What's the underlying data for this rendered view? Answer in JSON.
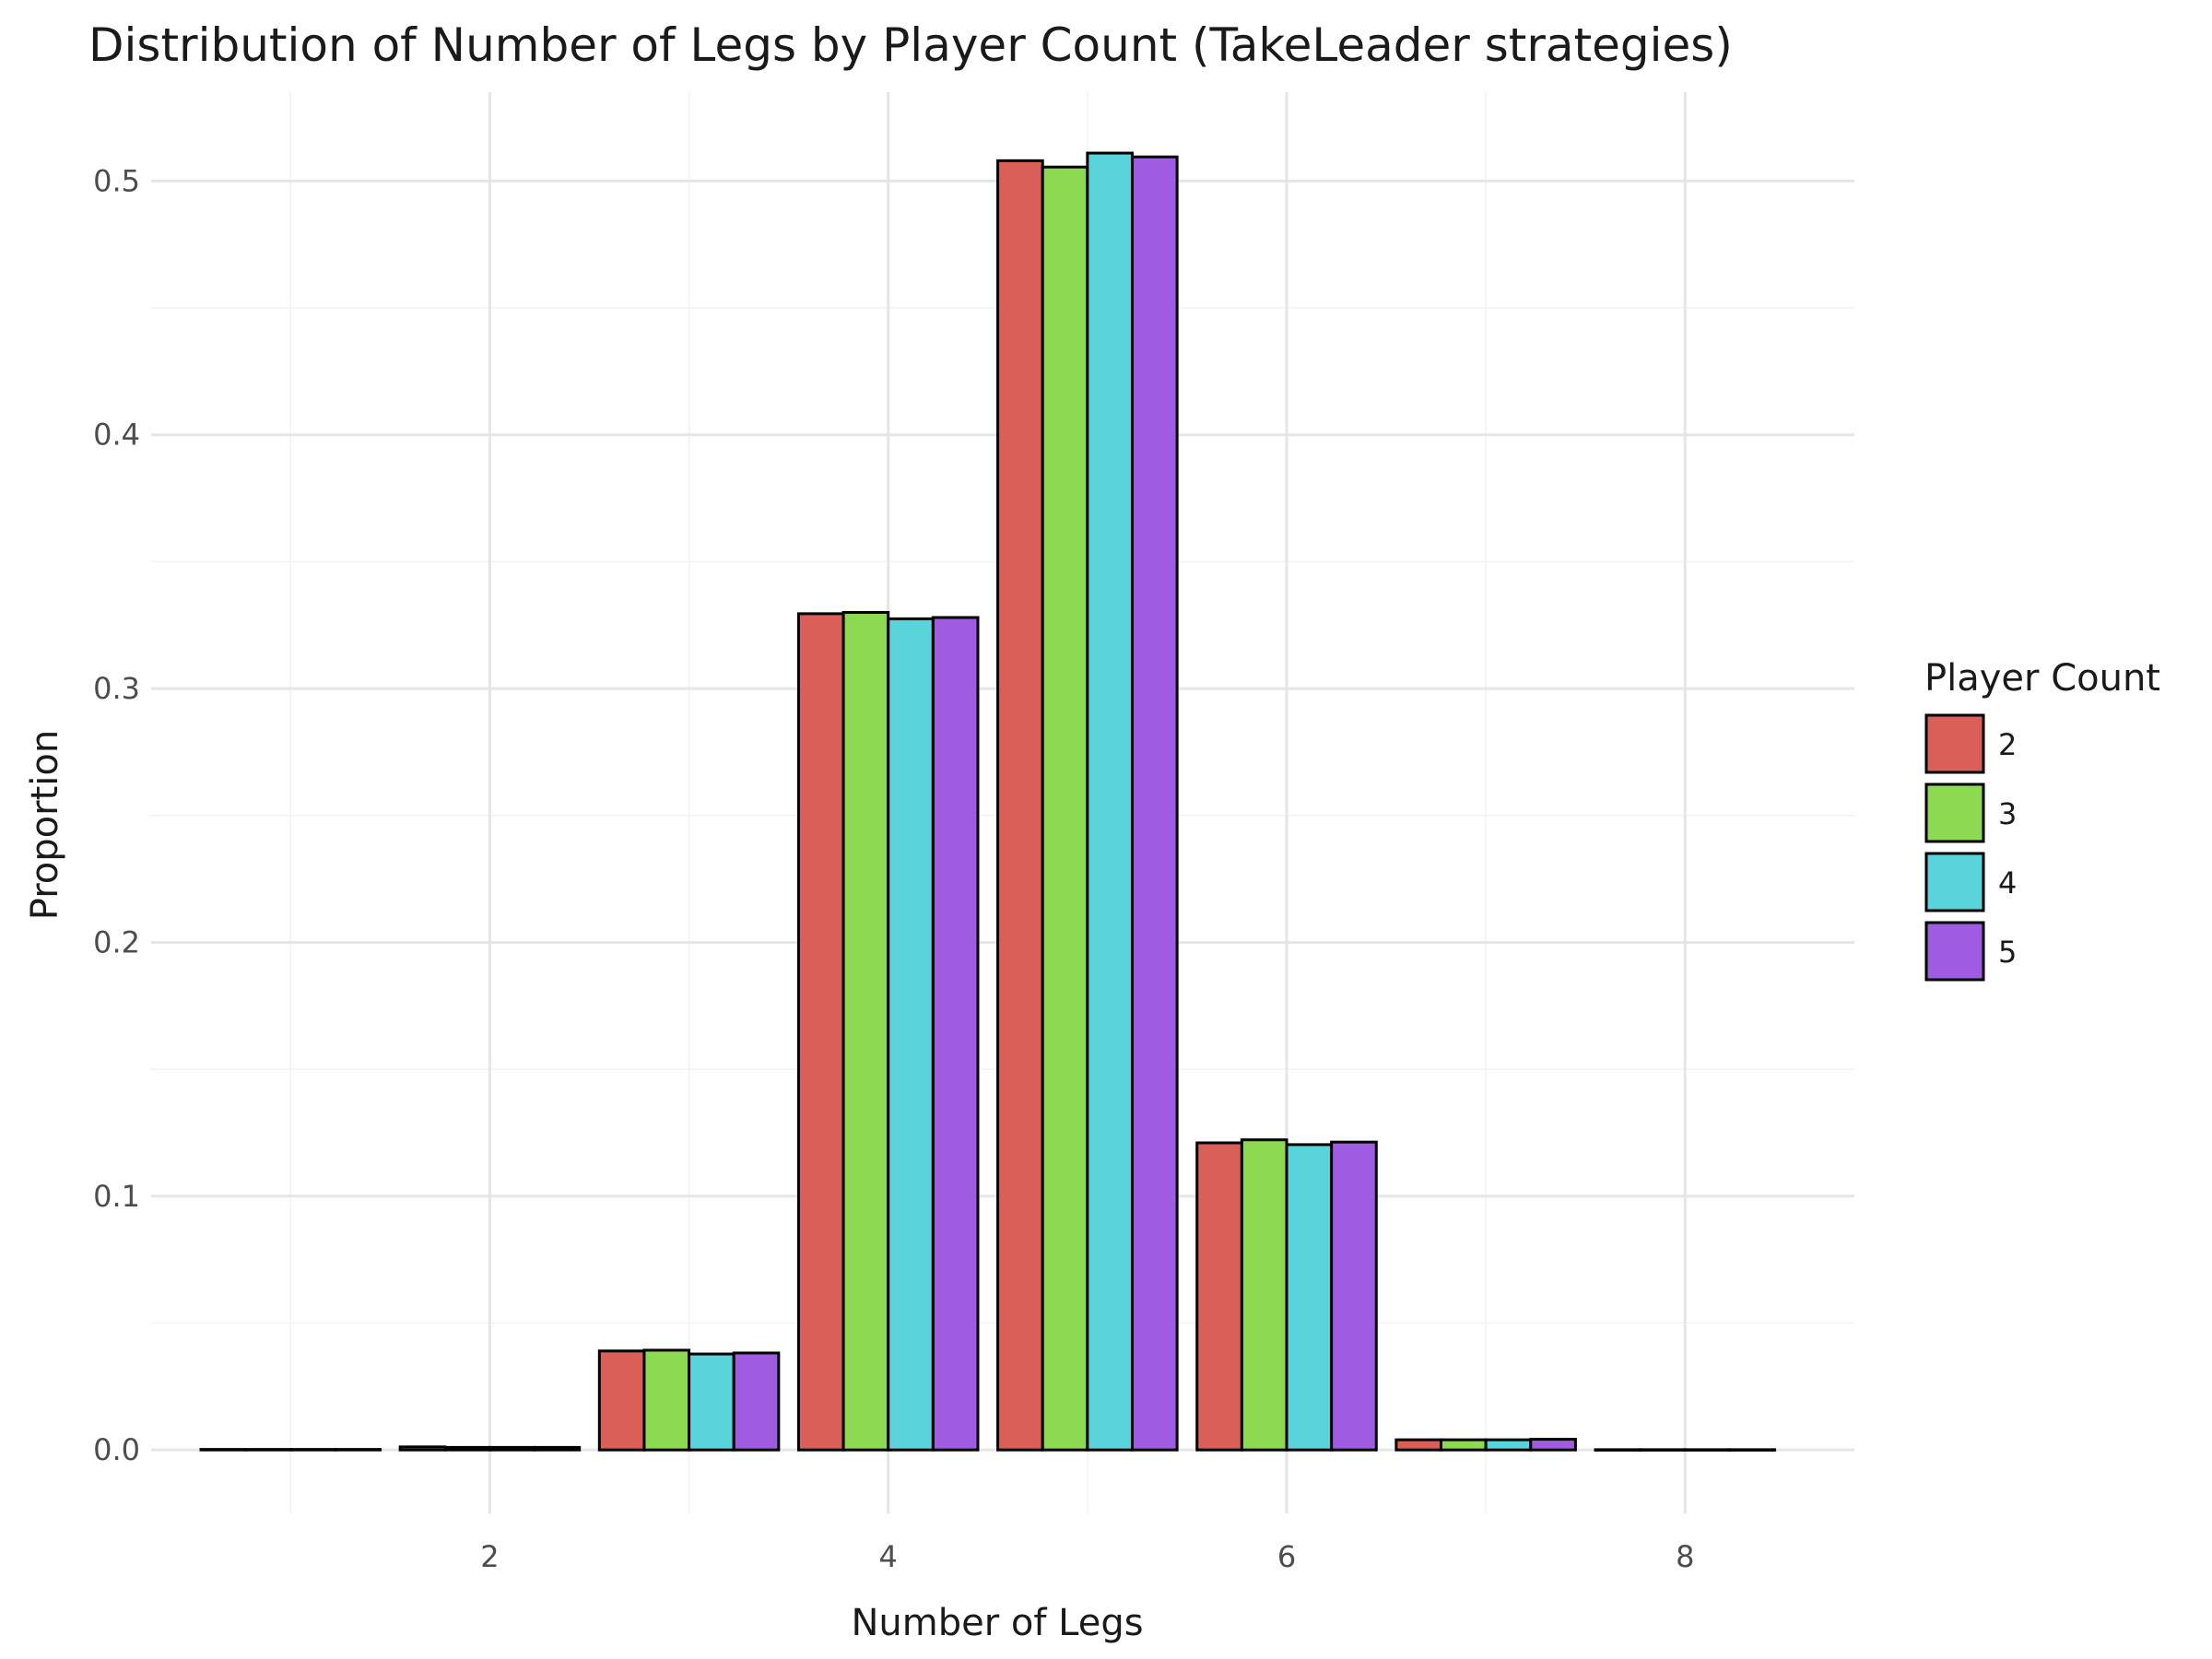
{
  "chart_data": {
    "type": "bar",
    "title": "Distribution of Number of Legs by Player Count (TakeLeader strategies)",
    "xlabel": "Number of Legs",
    "ylabel": "Proportion",
    "x": [
      1,
      2,
      3,
      4,
      5,
      6,
      7,
      8
    ],
    "xlim": [
      0.3,
      8.85
    ],
    "ylim": [
      -0.025,
      0.535
    ],
    "x_ticks": [
      2,
      4,
      6,
      8
    ],
    "y_ticks": [
      0.0,
      0.1,
      0.2,
      0.3,
      0.4,
      0.5
    ],
    "y_tick_labels": [
      "0.0",
      "0.1",
      "0.2",
      "0.3",
      "0.4",
      "0.5"
    ],
    "grid": true,
    "legend_title": "Player Count",
    "legend_position": "right",
    "bar_outline_color": "#000000",
    "series": [
      {
        "name": "2",
        "color": "#D95F58",
        "values": [
          0.0002,
          0.0012,
          0.039,
          0.3295,
          0.508,
          0.121,
          0.004,
          0.0001
        ]
      },
      {
        "name": "3",
        "color": "#8DD952",
        "values": [
          0.0002,
          0.001,
          0.0393,
          0.33,
          0.5055,
          0.1222,
          0.004,
          0.0001
        ]
      },
      {
        "name": "4",
        "color": "#58D4DA",
        "values": [
          0.0002,
          0.001,
          0.0378,
          0.3275,
          0.511,
          0.1203,
          0.004,
          0.0001
        ]
      },
      {
        "name": "5",
        "color": "#A05CE0",
        "values": [
          0.0002,
          0.001,
          0.0382,
          0.328,
          0.5095,
          0.1213,
          0.0042,
          0.0001
        ]
      }
    ]
  }
}
